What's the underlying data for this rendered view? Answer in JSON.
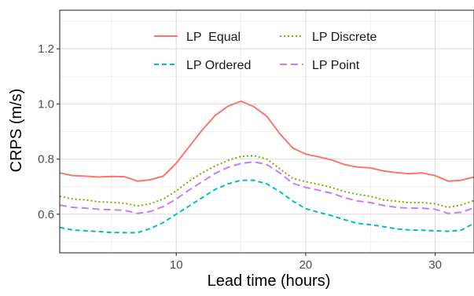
{
  "chart_data": {
    "type": "line",
    "xlabel": "Lead time (hours)",
    "ylabel": "CRPS (m/s)",
    "xlim": [
      1,
      33
    ],
    "ylim": [
      0.46,
      1.34
    ],
    "x_ticks": [
      10,
      20,
      30
    ],
    "y_ticks": [
      0.6,
      0.8,
      1.0,
      1.2
    ],
    "x_tick_labels": [
      "10",
      "20",
      "30"
    ],
    "y_tick_labels": [
      "0.6",
      "0.8",
      "1.0",
      "1.2"
    ],
    "grid": true,
    "legend_position": "top-center",
    "x": [
      1,
      2,
      3,
      4,
      5,
      6,
      7,
      8,
      9,
      10,
      11,
      12,
      13,
      14,
      15,
      16,
      17,
      18,
      19,
      20,
      21,
      22,
      23,
      24,
      25,
      26,
      27,
      28,
      29,
      30,
      31,
      32,
      33
    ],
    "series": [
      {
        "name": "LP  Equal",
        "color": "#F8766D",
        "dash": "solid",
        "values": [
          0.75,
          0.74,
          0.738,
          0.735,
          0.737,
          0.736,
          0.72,
          0.725,
          0.738,
          0.785,
          0.845,
          0.905,
          0.958,
          0.992,
          1.01,
          0.99,
          0.955,
          0.892,
          0.84,
          0.818,
          0.808,
          0.797,
          0.78,
          0.771,
          0.768,
          0.757,
          0.751,
          0.747,
          0.75,
          0.74,
          0.72,
          0.723,
          0.735
        ]
      },
      {
        "name": "LP Discrete",
        "color": "#7CAE00",
        "dash": "dotted",
        "values": [
          0.665,
          0.655,
          0.652,
          0.645,
          0.643,
          0.64,
          0.63,
          0.638,
          0.655,
          0.685,
          0.72,
          0.75,
          0.775,
          0.795,
          0.81,
          0.812,
          0.8,
          0.765,
          0.73,
          0.718,
          0.708,
          0.697,
          0.682,
          0.672,
          0.665,
          0.652,
          0.647,
          0.642,
          0.642,
          0.638,
          0.625,
          0.633,
          0.65
        ]
      },
      {
        "name": "LP Ordered",
        "color": "#00BFC4",
        "dash": "dashed",
        "values": [
          0.552,
          0.543,
          0.54,
          0.537,
          0.534,
          0.533,
          0.533,
          0.548,
          0.57,
          0.6,
          0.63,
          0.66,
          0.69,
          0.71,
          0.723,
          0.723,
          0.71,
          0.682,
          0.648,
          0.62,
          0.607,
          0.595,
          0.58,
          0.567,
          0.562,
          0.555,
          0.547,
          0.543,
          0.542,
          0.54,
          0.538,
          0.542,
          0.567
        ]
      },
      {
        "name": "LP Point",
        "color": "#C77CFF",
        "dash": "longdash",
        "values": [
          0.633,
          0.625,
          0.622,
          0.618,
          0.616,
          0.614,
          0.603,
          0.61,
          0.628,
          0.655,
          0.688,
          0.718,
          0.748,
          0.77,
          0.784,
          0.79,
          0.78,
          0.75,
          0.712,
          0.697,
          0.687,
          0.676,
          0.66,
          0.648,
          0.642,
          0.632,
          0.625,
          0.622,
          0.622,
          0.618,
          0.603,
          0.607,
          0.623
        ]
      }
    ]
  }
}
